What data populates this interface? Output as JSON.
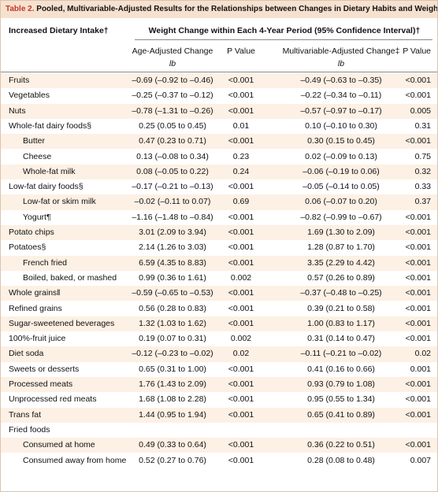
{
  "title": {
    "label": "Table 2.",
    "text": "Pooled, Multivariable-Adjusted Results for the Relationships between Changes in Dietary Habits and Weight Change.*"
  },
  "header": {
    "intake": "Increased Dietary Intake†",
    "span": "Weight Change within Each 4-Year Period (95% Confidence Interval)†",
    "age": "Age-Adjusted Change",
    "p1": "P Value",
    "mv": "Multivariable-Adjusted Change‡",
    "p2": "P Value",
    "unit1": "lb",
    "unit2": "lb"
  },
  "table": {
    "rows": [
      {
        "label": "Fruits",
        "age": "–0.69 (–0.92 to –0.46)",
        "p1": "<0.001",
        "mv": "–0.49 (–0.63 to –0.35)",
        "p2": "<0.001"
      },
      {
        "label": "Vegetables",
        "age": "–0.25 (–0.37 to –0.12)",
        "p1": "<0.001",
        "mv": "–0.22 (–0.34 to –0.11)",
        "p2": "<0.001"
      },
      {
        "label": "Nuts",
        "age": "–0.78 (–1.31 to –0.26)",
        "p1": "<0.001",
        "mv": "–0.57 (–0.97 to –0.17)",
        "p2": "0.005"
      },
      {
        "label": "Whole-fat dairy foods§",
        "age": "0.25 (0.05 to 0.45)",
        "p1": "0.01",
        "mv": "0.10 (–0.10 to 0.30)",
        "p2": "0.31",
        "sub": [
          {
            "label": "Butter",
            "age": "0.47 (0.23 to 0.71)",
            "p1": "<0.001",
            "mv": "0.30 (0.15 to 0.45)",
            "p2": "<0.001"
          },
          {
            "label": "Cheese",
            "age": "0.13 (–0.08 to 0.34)",
            "p1": "0.23",
            "mv": "0.02 (–0.09 to 0.13)",
            "p2": "0.75"
          },
          {
            "label": "Whole-fat milk",
            "age": "0.08 (–0.05 to 0.22)",
            "p1": "0.24",
            "mv": "–0.06 (–0.19 to 0.06)",
            "p2": "0.32"
          }
        ]
      },
      {
        "label": "Low-fat dairy foods§",
        "age": "–0.17 (–0.21 to –0.13)",
        "p1": "<0.001",
        "mv": "–0.05 (–0.14 to 0.05)",
        "p2": "0.33",
        "sub": [
          {
            "label": "Low-fat or skim milk",
            "age": "–0.02 (–0.11 to 0.07)",
            "p1": "0.69",
            "mv": "0.06 (–0.07 to 0.20)",
            "p2": "0.37"
          },
          {
            "label": "Yogurt¶",
            "age": "–1.16 (–1.48 to –0.84)",
            "p1": "<0.001",
            "mv": "–0.82 (–0.99 to –0.67)",
            "p2": "<0.001"
          }
        ]
      },
      {
        "label": "Potato chips",
        "age": "3.01 (2.09 to 3.94)",
        "p1": "<0.001",
        "mv": "1.69 (1.30 to 2.09)",
        "p2": "<0.001"
      },
      {
        "label": "Potatoes§",
        "age": "2.14 (1.26 to 3.03)",
        "p1": "<0.001",
        "mv": "1.28 (0.87 to 1.70)",
        "p2": "<0.001",
        "sub": [
          {
            "label": "French fried",
            "age": "6.59 (4.35 to 8.83)",
            "p1": "<0.001",
            "mv": "3.35 (2.29 to 4.42)",
            "p2": "<0.001"
          },
          {
            "label": "Boiled, baked, or mashed",
            "age": "0.99 (0.36 to 1.61)",
            "p1": "0.002",
            "mv": "0.57 (0.26 to 0.89)",
            "p2": "<0.001"
          }
        ]
      },
      {
        "label": "Whole grains‖",
        "age": "–0.59 (–0.65 to –0.53)",
        "p1": "<0.001",
        "mv": "–0.37 (–0.48 to –0.25)",
        "p2": "<0.001"
      },
      {
        "label": "Refined grains",
        "age": "0.56 (0.28 to 0.83)",
        "p1": "<0.001",
        "mv": "0.39 (0.21 to 0.58)",
        "p2": "<0.001"
      },
      {
        "label": "Sugar-sweetened beverages",
        "age": "1.32 (1.03 to 1.62)",
        "p1": "<0.001",
        "mv": "1.00 (0.83 to 1.17)",
        "p2": "<0.001"
      },
      {
        "label": "100%-fruit juice",
        "age": "0.19 (0.07 to 0.31)",
        "p1": "0.002",
        "mv": "0.31 (0.14 to 0.47)",
        "p2": "<0.001"
      },
      {
        "label": "Diet soda",
        "age": "–0.12 (–0.23 to –0.02)",
        "p1": "0.02",
        "mv": "–0.11 (–0.21 to –0.02)",
        "p2": "0.02"
      },
      {
        "label": "Sweets or desserts",
        "age": "0.65 (0.31 to 1.00)",
        "p1": "<0.001",
        "mv": "0.41 (0.16 to 0.66)",
        "p2": "0.001"
      },
      {
        "label": "Processed meats",
        "age": "1.76 (1.43 to 2.09)",
        "p1": "<0.001",
        "mv": "0.93 (0.79 to 1.08)",
        "p2": "<0.001"
      },
      {
        "label": "Unprocessed red meats",
        "age": "1.68 (1.08 to 2.28)",
        "p1": "<0.001",
        "mv": "0.95 (0.55 to 1.34)",
        "p2": "<0.001"
      },
      {
        "label": "Trans fat",
        "age": "1.44 (0.95 to 1.94)",
        "p1": "<0.001",
        "mv": "0.65 (0.41 to 0.89)",
        "p2": "<0.001"
      },
      {
        "label": "Fried foods",
        "sub": [
          {
            "label": "Consumed at home",
            "age": "0.49 (0.33 to 0.64)",
            "p1": "<0.001",
            "mv": "0.36 (0.22 to 0.51)",
            "p2": "<0.001"
          },
          {
            "label": "Consumed away from home",
            "age": "0.52 (0.27 to 0.76)",
            "p1": "<0.001",
            "mv": "0.28 (0.08 to 0.48)",
            "p2": "0.007"
          }
        ]
      }
    ]
  }
}
